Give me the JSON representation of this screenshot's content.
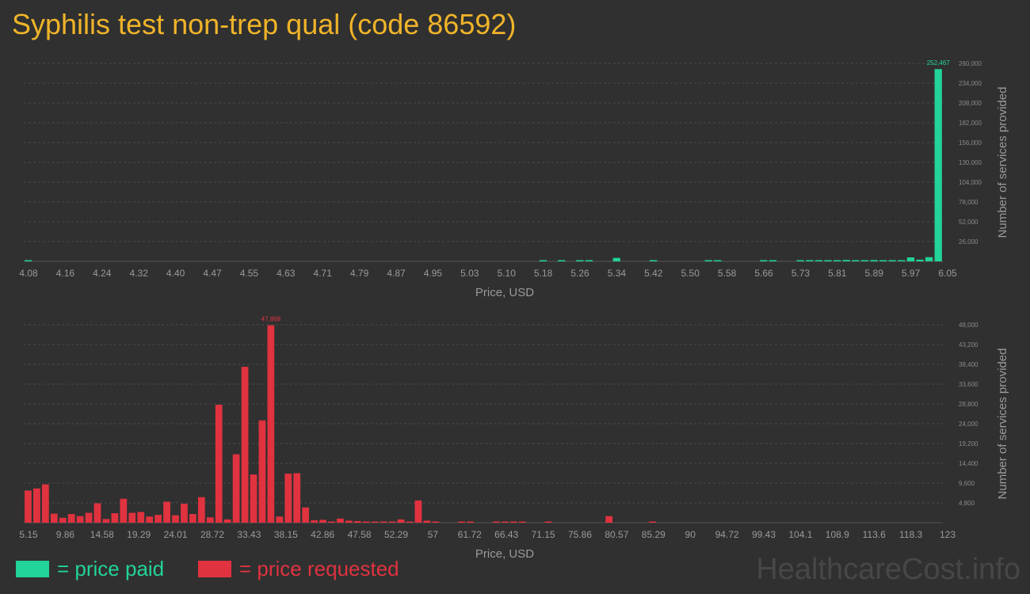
{
  "title": "Syphilis test non-trep qual (code 86592)",
  "watermark": "HealthcareCost.info",
  "colors": {
    "paid": "#22d39a",
    "requested": "#e0323f",
    "title": "#f0b429"
  },
  "legend": [
    {
      "key": "paid",
      "label": "= price paid"
    },
    {
      "key": "requested",
      "label": "= price requested"
    }
  ],
  "chart_data": [
    {
      "type": "bar",
      "series_key": "paid",
      "xlabel": "Price, USD",
      "ylabel": "Number of services provided",
      "ylim": [
        0,
        260000
      ],
      "yticks": [
        "26,000",
        "52,000",
        "78,000",
        "104,000",
        "130,000",
        "156,000",
        "182,000",
        "208,000",
        "234,000",
        "260,000"
      ],
      "xticks": [
        "4.08",
        "4.16",
        "4.24",
        "4.32",
        "4.40",
        "4.47",
        "4.55",
        "4.63",
        "4.71",
        "4.79",
        "4.87",
        "4.95",
        "5.03",
        "5.10",
        "5.18",
        "5.26",
        "5.34",
        "5.42",
        "5.50",
        "5.58",
        "5.66",
        "5.73",
        "5.81",
        "5.89",
        "5.97",
        "6.05"
      ],
      "x_range": [
        4.08,
        6.05
      ],
      "peak_label": "252,467",
      "peak_index": 99,
      "values": [
        800,
        0,
        0,
        0,
        0,
        0,
        0,
        0,
        0,
        0,
        0,
        0,
        0,
        0,
        0,
        0,
        0,
        0,
        0,
        0,
        0,
        0,
        0,
        0,
        0,
        0,
        0,
        0,
        0,
        0,
        0,
        0,
        0,
        0,
        0,
        0,
        0,
        0,
        0,
        0,
        0,
        0,
        0,
        0,
        0,
        0,
        0,
        0,
        0,
        0,
        0,
        0,
        0,
        0,
        0,
        0,
        600,
        0,
        900,
        0,
        700,
        800,
        0,
        0,
        4500,
        0,
        0,
        0,
        700,
        0,
        0,
        0,
        0,
        0,
        800,
        700,
        0,
        0,
        0,
        0,
        500,
        600,
        0,
        0,
        600,
        600,
        700,
        900,
        700,
        1800,
        800,
        900,
        1700,
        900,
        1000,
        1500,
        5200,
        2200,
        5500,
        252467
      ]
    },
    {
      "type": "bar",
      "series_key": "requested",
      "xlabel": "Price, USD",
      "ylabel": "Number of services provided",
      "ylim": [
        0,
        48000
      ],
      "yticks": [
        "4,800",
        "9,600",
        "14,400",
        "19,200",
        "24,000",
        "28,800",
        "33,600",
        "38,400",
        "43,200",
        "48,000"
      ],
      "xticks": [
        "5.15",
        "9.86",
        "14.58",
        "19.29",
        "24.01",
        "28.72",
        "33.43",
        "38.15",
        "42.86",
        "47.58",
        "52.29",
        "57",
        "61.72",
        "66.43",
        "71.15",
        "75.86",
        "80.57",
        "85.29",
        "90",
        "94.72",
        "99.43",
        "104.1",
        "108.9",
        "113.6",
        "118.3",
        "123"
      ],
      "x_range": [
        5.15,
        123
      ],
      "peak_label": "47,868",
      "peak_index": 28,
      "values": [
        7800,
        8300,
        9300,
        2200,
        1200,
        2100,
        1600,
        2400,
        4700,
        900,
        2300,
        5800,
        2400,
        2600,
        1500,
        1900,
        5100,
        1800,
        4600,
        2100,
        6200,
        1300,
        28600,
        800,
        16600,
        37800,
        11700,
        24800,
        47868,
        1500,
        11900,
        12000,
        3700,
        600,
        700,
        200,
        1000,
        500,
        400,
        100,
        200,
        300,
        200,
        800,
        200,
        5400,
        500,
        100,
        0,
        0,
        100,
        200,
        0,
        0,
        100,
        100,
        200,
        100,
        0,
        0,
        200,
        0,
        0,
        0,
        0,
        0,
        0,
        1600,
        0,
        0,
        0,
        0,
        200,
        0,
        0,
        0,
        0,
        0,
        0,
        0,
        0,
        0,
        0,
        0,
        0,
        0,
        0,
        0,
        0,
        0,
        0,
        0,
        0,
        0,
        0,
        0,
        0,
        0,
        0,
        0,
        0,
        0,
        0,
        0,
        0,
        0
      ]
    }
  ]
}
